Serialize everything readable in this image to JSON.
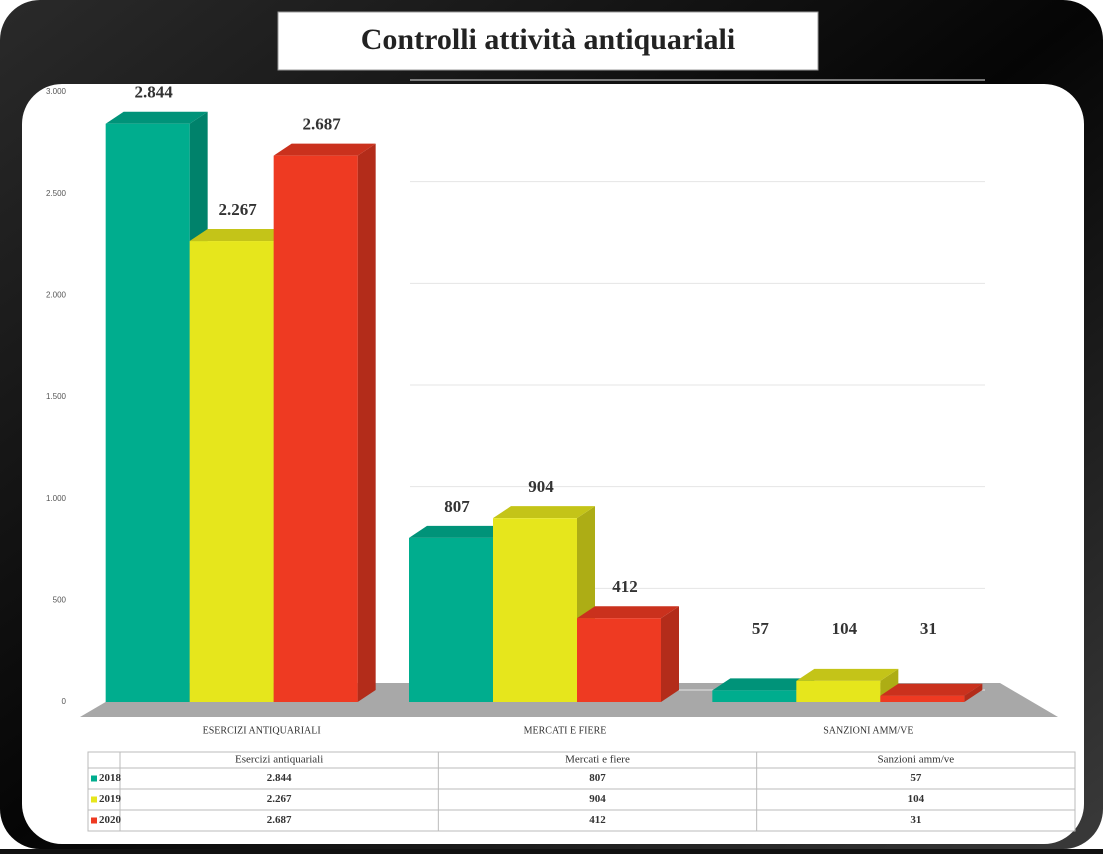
{
  "chart_data": {
    "type": "bar3d",
    "title": "Controlli attività antiquariali",
    "categories": [
      "ESERCIZI ANTIQUARIALI",
      "MERCATI E FIERE",
      "SANZIONI AMM/VE"
    ],
    "series": [
      {
        "name": "2018",
        "color": "#00ad8e",
        "values": [
          2844,
          807,
          57
        ],
        "value_labels": [
          "2.844",
          "807",
          "57"
        ]
      },
      {
        "name": "2019",
        "color": "#e6e61c",
        "values": [
          2267,
          904,
          104
        ],
        "value_labels": [
          "2.267",
          "904",
          "104"
        ]
      },
      {
        "name": "2020",
        "color": "#ee3a22",
        "values": [
          2687,
          412,
          31
        ],
        "value_labels": [
          "2.687",
          "412",
          "31"
        ]
      }
    ],
    "ylim": [
      0,
      3000
    ],
    "yticks": [
      0,
      500,
      {
        "value": 1000,
        "label": "1.000"
      },
      {
        "value": 1500,
        "label": "1.500"
      },
      {
        "value": 2000,
        "label": "2.000"
      },
      {
        "value": 2500,
        "label": "2.500"
      },
      {
        "value": 3000,
        "label": "3.000"
      }
    ],
    "grid": true,
    "table_headers": [
      "Esercizi antiquariali",
      "Mercati e fiere",
      "Sanzioni amm/ve"
    ]
  }
}
